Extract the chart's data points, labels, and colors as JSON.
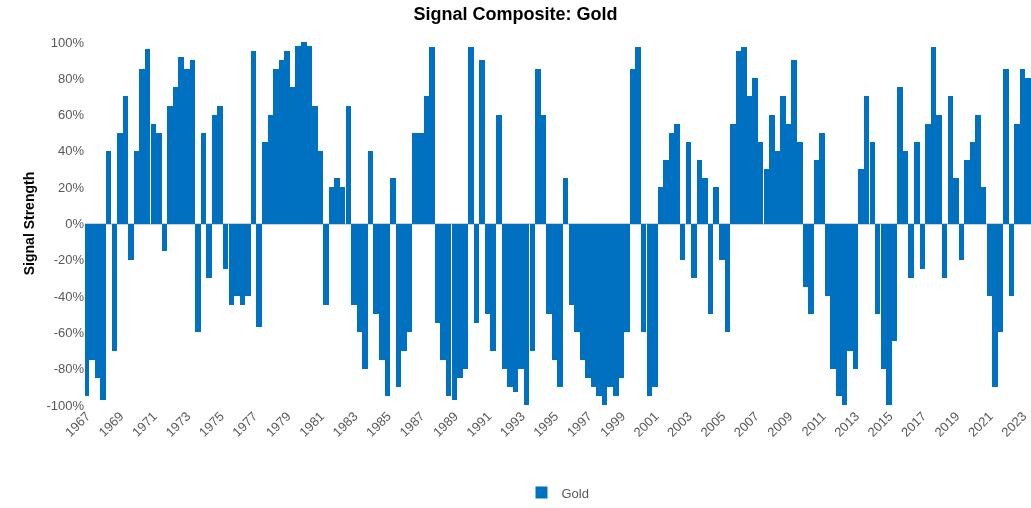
{
  "chart_data": {
    "type": "bar",
    "title": "Signal Composite: Gold",
    "ylabel": "Signal Strength",
    "x": [
      "1967-01",
      "1967-05",
      "1967-09",
      "1968-01",
      "1968-05",
      "1968-09",
      "1969-01",
      "1969-05",
      "1969-09",
      "1970-01",
      "1970-05",
      "1970-09",
      "1971-01",
      "1971-05",
      "1971-09",
      "1972-01",
      "1972-05",
      "1972-09",
      "1973-01",
      "1973-05",
      "1973-09",
      "1974-01",
      "1974-05",
      "1974-09",
      "1975-01",
      "1975-05",
      "1975-09",
      "1976-01",
      "1976-05",
      "1976-09",
      "1977-01",
      "1977-05",
      "1977-09",
      "1978-01",
      "1978-05",
      "1978-09",
      "1979-01",
      "1979-05",
      "1979-09",
      "1980-01",
      "1980-05",
      "1980-09",
      "1981-01",
      "1981-05",
      "1981-09",
      "1982-01",
      "1982-05",
      "1982-09",
      "1983-01",
      "1983-05",
      "1983-09",
      "1984-01",
      "1984-05",
      "1984-09",
      "1985-01",
      "1985-05",
      "1985-09",
      "1986-01",
      "1986-05",
      "1986-09",
      "1987-01",
      "1987-05",
      "1987-09",
      "1988-01",
      "1988-05",
      "1988-09",
      "1989-01",
      "1989-05",
      "1989-09",
      "1990-01",
      "1990-05",
      "1990-09",
      "1991-01",
      "1991-05",
      "1991-09",
      "1992-01",
      "1992-05",
      "1992-09",
      "1993-01",
      "1993-05",
      "1993-09",
      "1994-01",
      "1994-05",
      "1994-09",
      "1995-01",
      "1995-05",
      "1995-09",
      "1996-01",
      "1996-05",
      "1996-09",
      "1997-01",
      "1997-05",
      "1997-09",
      "1998-01",
      "1998-05",
      "1998-09",
      "1999-01",
      "1999-05",
      "1999-09",
      "2000-01",
      "2000-05",
      "2000-09",
      "2001-01",
      "2001-05",
      "2001-09",
      "2002-01",
      "2002-05",
      "2002-09",
      "2003-01",
      "2003-05",
      "2003-09",
      "2004-01",
      "2004-05",
      "2004-09",
      "2005-01",
      "2005-05",
      "2005-09",
      "2006-01",
      "2006-05",
      "2006-09",
      "2007-01",
      "2007-05",
      "2007-09",
      "2008-01",
      "2008-05",
      "2008-09",
      "2009-01",
      "2009-05",
      "2009-09",
      "2010-01",
      "2010-05",
      "2010-09",
      "2011-01",
      "2011-05",
      "2011-09",
      "2012-01",
      "2012-05",
      "2012-09",
      "2013-01",
      "2013-05",
      "2013-09",
      "2014-01",
      "2014-05",
      "2014-09",
      "2015-01",
      "2015-05",
      "2015-09",
      "2016-01",
      "2016-05",
      "2016-09",
      "2017-01",
      "2017-05",
      "2017-09",
      "2018-01",
      "2018-05",
      "2018-09",
      "2019-01",
      "2019-05",
      "2019-09",
      "2020-01",
      "2020-05",
      "2020-09",
      "2021-01",
      "2021-05",
      "2021-09",
      "2022-01",
      "2022-05",
      "2022-09",
      "2023-01",
      "2023-05"
    ],
    "series": [
      {
        "name": "Gold",
        "color": "#0070c0",
        "values": [
          -95,
          -75,
          -85,
          -97,
          40,
          -70,
          50,
          70,
          -20,
          40,
          85,
          96,
          55,
          50,
          -15,
          65,
          75,
          92,
          85,
          90,
          -60,
          50,
          -30,
          60,
          65,
          -25,
          -45,
          -40,
          -45,
          -40,
          95,
          -57,
          45,
          60,
          85,
          90,
          95,
          75,
          98,
          100,
          98,
          65,
          40,
          -45,
          20,
          25,
          20,
          65,
          -45,
          -60,
          -80,
          40,
          -50,
          -75,
          -95,
          25,
          -90,
          -70,
          -60,
          50,
          50,
          70,
          97,
          -55,
          -75,
          -95,
          -97,
          -85,
          -80,
          97,
          -55,
          90,
          -50,
          -70,
          60,
          -80,
          -90,
          -93,
          -80,
          -100,
          -70,
          85,
          60,
          -50,
          -75,
          -90,
          25,
          -45,
          -60,
          -75,
          -85,
          -90,
          -95,
          -100,
          -90,
          -95,
          -85,
          -60,
          85,
          97,
          -60,
          -95,
          -90,
          20,
          35,
          50,
          55,
          -20,
          45,
          -30,
          35,
          25,
          -50,
          20,
          -20,
          -60,
          55,
          95,
          97,
          70,
          80,
          45,
          30,
          60,
          40,
          70,
          55,
          90,
          45,
          -35,
          -50,
          35,
          50,
          -40,
          -80,
          -95,
          -100,
          -70,
          -80,
          30,
          70,
          45,
          -50,
          -80,
          -100,
          -65,
          75,
          40,
          -30,
          45,
          -25,
          55,
          97,
          60,
          -30,
          70,
          25,
          -20,
          35,
          45,
          60,
          20,
          -40,
          -90,
          -60,
          85,
          -40,
          55,
          85,
          80
        ]
      }
    ],
    "xlim": [
      "1966-12-01",
      "2023-07-01"
    ],
    "xticks": [
      "1967",
      "1969",
      "1971",
      "1973",
      "1975",
      "1977",
      "1979",
      "1981",
      "1983",
      "1985",
      "1987",
      "1989",
      "1991",
      "1993",
      "1995",
      "1997",
      "1999",
      "2001",
      "2003",
      "2005",
      "2007",
      "2009",
      "2011",
      "2013",
      "2015",
      "2017",
      "2019",
      "2021",
      "2023"
    ],
    "ylim": [
      -100,
      100
    ],
    "yticks": [
      {
        "value": -100,
        "label": "-100%"
      },
      {
        "value": -80,
        "label": "-80%"
      },
      {
        "value": -60,
        "label": "-60%"
      },
      {
        "value": -40,
        "label": "-40%"
      },
      {
        "value": -20,
        "label": "-20%"
      },
      {
        "value": 0,
        "label": "0%"
      },
      {
        "value": 20,
        "label": "20%"
      },
      {
        "value": 40,
        "label": "40%"
      },
      {
        "value": 60,
        "label": "60%"
      },
      {
        "value": 80,
        "label": "80%"
      },
      {
        "value": 100,
        "label": "100%"
      }
    ],
    "legend": "bottom"
  }
}
